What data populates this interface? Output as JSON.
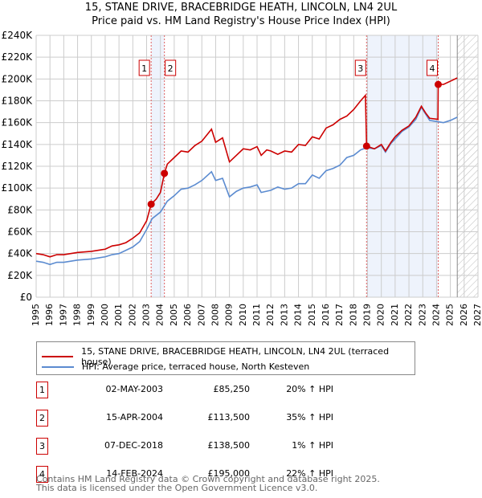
{
  "chart_data": {
    "type": "line",
    "title": "15, STANE DRIVE, BRACEBRIDGE HEATH, LINCOLN, LN4 2UL",
    "subtitle": "Price paid vs. HM Land Registry's House Price Index (HPI)",
    "xlim": [
      1995,
      2027
    ],
    "ylim": [
      0,
      240000
    ],
    "x_ticks": [
      "1995",
      "1996",
      "1997",
      "1998",
      "1999",
      "2000",
      "2001",
      "2002",
      "2003",
      "2004",
      "2005",
      "2006",
      "2007",
      "2008",
      "2009",
      "2010",
      "2011",
      "2012",
      "2013",
      "2014",
      "2015",
      "2016",
      "2017",
      "2018",
      "2019",
      "2020",
      "2021",
      "2022",
      "2023",
      "2024",
      "2025",
      "2026",
      "2027"
    ],
    "y_ticks": [
      "£0",
      "£20K",
      "£40K",
      "£60K",
      "£80K",
      "£100K",
      "£120K",
      "£140K",
      "£160K",
      "£180K",
      "£200K",
      "£220K",
      "£240K"
    ],
    "grid": true,
    "shaded_ranges": [
      [
        2003.33,
        2004.29
      ],
      [
        2018.93,
        2024.12
      ]
    ],
    "forecast_from": 2025.5,
    "series": [
      {
        "name": "15, STANE DRIVE, BRACEBRIDGE HEATH, LINCOLN, LN4 2UL (terraced house)",
        "color": "#cc0000",
        "points": [
          [
            1995,
            40
          ],
          [
            1995.5,
            39
          ],
          [
            1996,
            37
          ],
          [
            1996.5,
            39
          ],
          [
            1997,
            39
          ],
          [
            1998,
            41
          ],
          [
            1999,
            42
          ],
          [
            2000,
            44
          ],
          [
            2000.5,
            47
          ],
          [
            2001,
            48
          ],
          [
            2001.5,
            50
          ],
          [
            2002,
            54
          ],
          [
            2002.5,
            59
          ],
          [
            2003,
            70
          ],
          [
            2003.33,
            85.25
          ],
          [
            2003.7,
            90
          ],
          [
            2004,
            96
          ],
          [
            2004.29,
            113.5
          ],
          [
            2004.5,
            122
          ],
          [
            2005,
            128
          ],
          [
            2005.5,
            134
          ],
          [
            2006,
            133
          ],
          [
            2006.5,
            139
          ],
          [
            2007,
            143
          ],
          [
            2007.7,
            154
          ],
          [
            2008,
            142
          ],
          [
            2008.5,
            146
          ],
          [
            2009,
            124
          ],
          [
            2009.5,
            130
          ],
          [
            2010,
            136
          ],
          [
            2010.5,
            135
          ],
          [
            2011,
            138
          ],
          [
            2011.3,
            130
          ],
          [
            2011.7,
            135
          ],
          [
            2012,
            134
          ],
          [
            2012.5,
            131
          ],
          [
            2013,
            134
          ],
          [
            2013.5,
            133
          ],
          [
            2014,
            140
          ],
          [
            2014.5,
            139
          ],
          [
            2015,
            147
          ],
          [
            2015.5,
            145
          ],
          [
            2016,
            155
          ],
          [
            2016.5,
            158
          ],
          [
            2017,
            163
          ],
          [
            2017.5,
            166
          ],
          [
            2018,
            172
          ],
          [
            2018.5,
            180
          ],
          [
            2018.85,
            185
          ],
          [
            2018.93,
            138.5
          ],
          [
            2019.5,
            136
          ],
          [
            2020,
            140
          ],
          [
            2020.3,
            134
          ],
          [
            2020.7,
            142
          ],
          [
            2021,
            147
          ],
          [
            2021.5,
            153
          ],
          [
            2022,
            157
          ],
          [
            2022.5,
            165
          ],
          [
            2022.9,
            175
          ],
          [
            2023.2,
            169
          ],
          [
            2023.5,
            164
          ],
          [
            2024.1,
            163
          ],
          [
            2024.12,
            195
          ],
          [
            2024.5,
            195
          ],
          [
            2025,
            198
          ],
          [
            2025.5,
            201
          ]
        ]
      },
      {
        "name": "HPI: Average price, terraced house, North Kesteven",
        "color": "#5b8bd0",
        "points": [
          [
            1995,
            33
          ],
          [
            1995.5,
            32
          ],
          [
            1996,
            30
          ],
          [
            1996.5,
            32
          ],
          [
            1997,
            32
          ],
          [
            1998,
            34
          ],
          [
            1999,
            35
          ],
          [
            2000,
            37
          ],
          [
            2000.5,
            39
          ],
          [
            2001,
            40
          ],
          [
            2001.5,
            43
          ],
          [
            2002,
            46
          ],
          [
            2002.5,
            51
          ],
          [
            2003,
            62
          ],
          [
            2003.4,
            72
          ],
          [
            2004,
            78
          ],
          [
            2004.5,
            88
          ],
          [
            2005,
            93
          ],
          [
            2005.5,
            99
          ],
          [
            2006,
            100
          ],
          [
            2006.5,
            103
          ],
          [
            2007,
            107
          ],
          [
            2007.7,
            115
          ],
          [
            2008,
            107
          ],
          [
            2008.5,
            109
          ],
          [
            2009,
            92
          ],
          [
            2009.5,
            97
          ],
          [
            2010,
            100
          ],
          [
            2010.5,
            101
          ],
          [
            2011,
            103
          ],
          [
            2011.3,
            96
          ],
          [
            2012,
            98
          ],
          [
            2012.5,
            101
          ],
          [
            2013,
            99
          ],
          [
            2013.5,
            100
          ],
          [
            2014,
            104
          ],
          [
            2014.5,
            104
          ],
          [
            2015,
            112
          ],
          [
            2015.5,
            109
          ],
          [
            2016,
            116
          ],
          [
            2016.5,
            118
          ],
          [
            2017,
            121
          ],
          [
            2017.5,
            128
          ],
          [
            2018,
            130
          ],
          [
            2018.5,
            135
          ],
          [
            2018.93,
            137
          ],
          [
            2019.5,
            136
          ],
          [
            2020,
            139
          ],
          [
            2020.3,
            133
          ],
          [
            2020.7,
            141
          ],
          [
            2021,
            145
          ],
          [
            2021.5,
            152
          ],
          [
            2022,
            156
          ],
          [
            2022.5,
            163
          ],
          [
            2022.9,
            174
          ],
          [
            2023.2,
            168
          ],
          [
            2023.5,
            162
          ],
          [
            2024,
            161
          ],
          [
            2024.5,
            160
          ],
          [
            2025,
            162
          ],
          [
            2025.5,
            165
          ]
        ]
      }
    ],
    "sales": [
      {
        "label": "1",
        "date": "02-MAY-2003",
        "price": "£85,250",
        "hpi": "20% ↑ HPI",
        "x": 2003.33,
        "y": 85.25
      },
      {
        "label": "2",
        "date": "15-APR-2004",
        "price": "£113,500",
        "hpi": "35% ↑ HPI",
        "x": 2004.29,
        "y": 113.5
      },
      {
        "label": "3",
        "date": "07-DEC-2018",
        "price": "£138,500",
        "hpi": "1% ↑ HPI",
        "x": 2018.93,
        "y": 138.5
      },
      {
        "label": "4",
        "date": "14-FEB-2024",
        "price": "£195,000",
        "hpi": "22% ↑ HPI",
        "x": 2024.12,
        "y": 195
      }
    ]
  },
  "footer": {
    "line1": "Contains HM Land Registry data © Crown copyright and database right 2025.",
    "line2": "This data is licensed under the Open Government Licence v3.0."
  }
}
